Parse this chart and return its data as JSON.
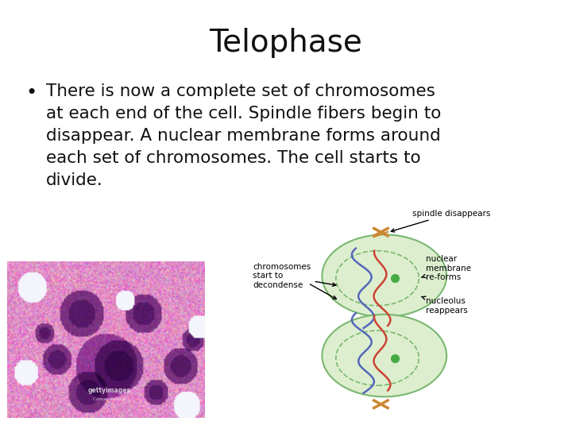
{
  "title": "Telophase",
  "title_fontsize": 28,
  "title_fontfamily": "DejaVu Sans",
  "bullet_text_lines": [
    "There is now a complete set of chromosomes",
    "at each end of the cell. Spindle fibers begin to",
    "disappear. A nuclear membrane forms around",
    "each set of chromosomes. The cell starts to",
    "divide."
  ],
  "bullet_fontsize": 15.5,
  "background_color": "#ffffff",
  "text_color": "#111111",
  "cell_color": "#ddeece",
  "cell_edge": "#7ab870",
  "nucleus_edge": "#7ab870",
  "chrom_blue": "#5566bb",
  "chrom_red": "#cc4433",
  "green_dot": "#44aa44",
  "label_fontsize": 7.5,
  "spindle_color": "#cc8833"
}
